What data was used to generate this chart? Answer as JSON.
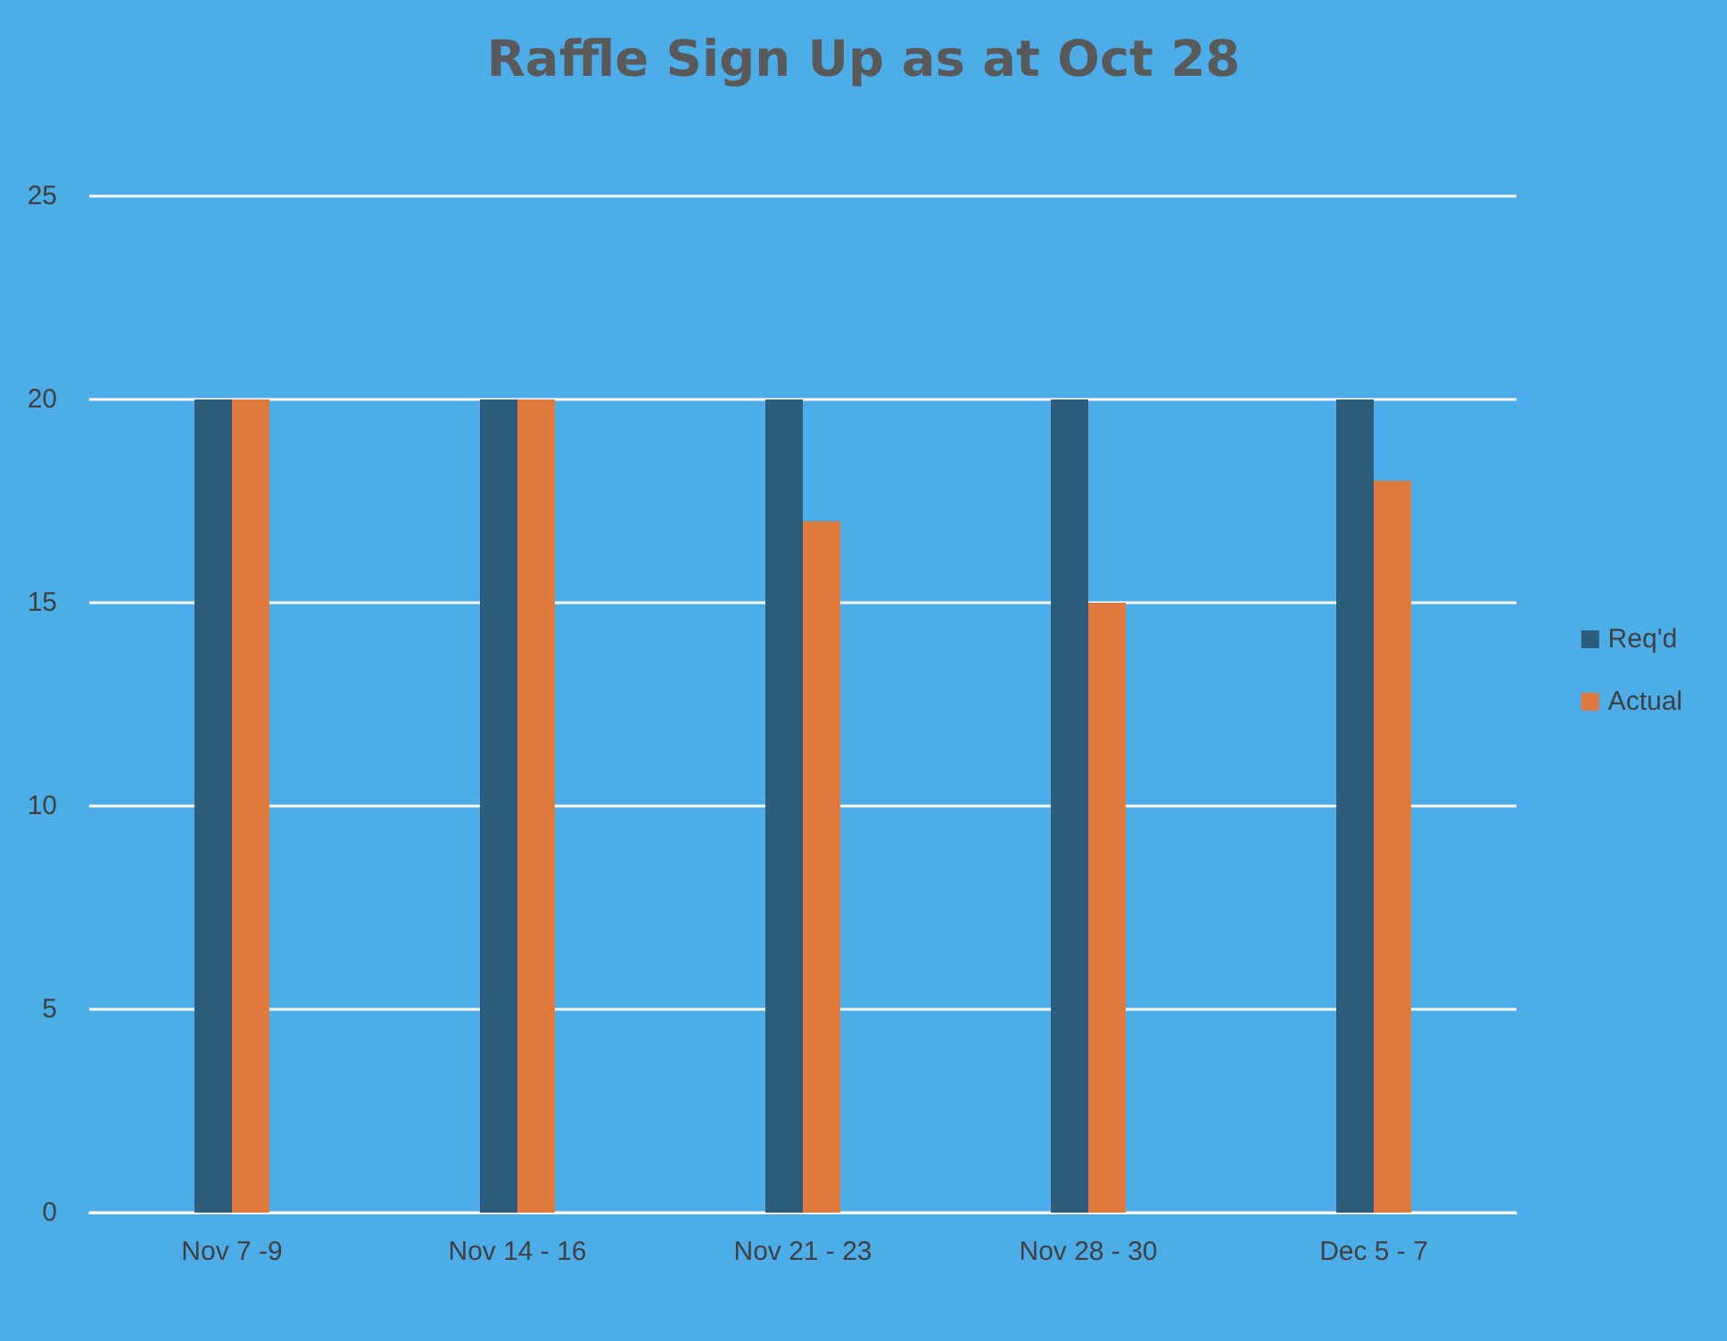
{
  "chart_data": {
    "type": "bar",
    "title": "Raffle Sign Up as at Oct 28",
    "categories": [
      "Nov 7 -9",
      "Nov 14 - 16",
      "Nov 21 - 23",
      "Nov 28 - 30",
      "Dec 5 - 7"
    ],
    "series": [
      {
        "name": "Req'd",
        "color": "#2e5d7c",
        "values": [
          20,
          20,
          20,
          20,
          20
        ]
      },
      {
        "name": "Actual",
        "color": "#df7a3c",
        "values": [
          20,
          20,
          17,
          15,
          18
        ]
      }
    ],
    "ylim": [
      0,
      25
    ],
    "yticks": [
      0,
      5,
      10,
      15,
      20,
      25
    ],
    "grid": "y",
    "legend": "right"
  }
}
